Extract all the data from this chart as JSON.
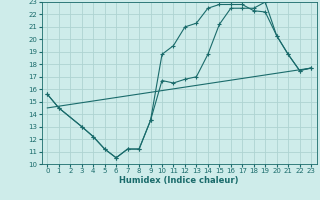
{
  "xlabel": "Humidex (Indice chaleur)",
  "background_color": "#ceecea",
  "grid_color": "#aed4d2",
  "line_color": "#1a6b6b",
  "xlim": [
    -0.5,
    23.5
  ],
  "ylim": [
    10,
    23
  ],
  "xticks": [
    0,
    1,
    2,
    3,
    4,
    5,
    6,
    7,
    8,
    9,
    10,
    11,
    12,
    13,
    14,
    15,
    16,
    17,
    18,
    19,
    20,
    21,
    22,
    23
  ],
  "yticks": [
    10,
    11,
    12,
    13,
    14,
    15,
    16,
    17,
    18,
    19,
    20,
    21,
    22,
    23
  ],
  "line1_x": [
    0,
    1,
    3,
    4,
    5,
    6,
    7,
    8,
    9,
    10,
    11,
    12,
    13,
    14,
    15,
    16,
    17,
    18,
    19,
    20,
    21,
    22,
    23
  ],
  "line1_y": [
    15.6,
    14.5,
    13.0,
    12.2,
    11.2,
    10.5,
    11.2,
    11.2,
    13.5,
    16.7,
    16.5,
    16.8,
    17.0,
    18.8,
    21.2,
    22.5,
    22.5,
    22.5,
    23.0,
    20.3,
    18.8,
    17.5,
    17.7
  ],
  "line2_x": [
    0,
    1,
    3,
    4,
    5,
    6,
    7,
    8,
    9,
    10,
    11,
    12,
    13,
    14,
    15,
    16,
    17,
    18,
    19,
    20,
    21,
    22,
    23
  ],
  "line2_y": [
    15.6,
    14.5,
    13.0,
    12.2,
    11.2,
    10.5,
    11.2,
    11.2,
    13.5,
    18.8,
    19.5,
    21.0,
    21.3,
    22.5,
    22.8,
    22.8,
    22.8,
    22.3,
    22.2,
    20.3,
    18.8,
    17.5,
    17.7
  ],
  "line3_x": [
    0,
    23
  ],
  "line3_y": [
    14.5,
    17.7
  ]
}
